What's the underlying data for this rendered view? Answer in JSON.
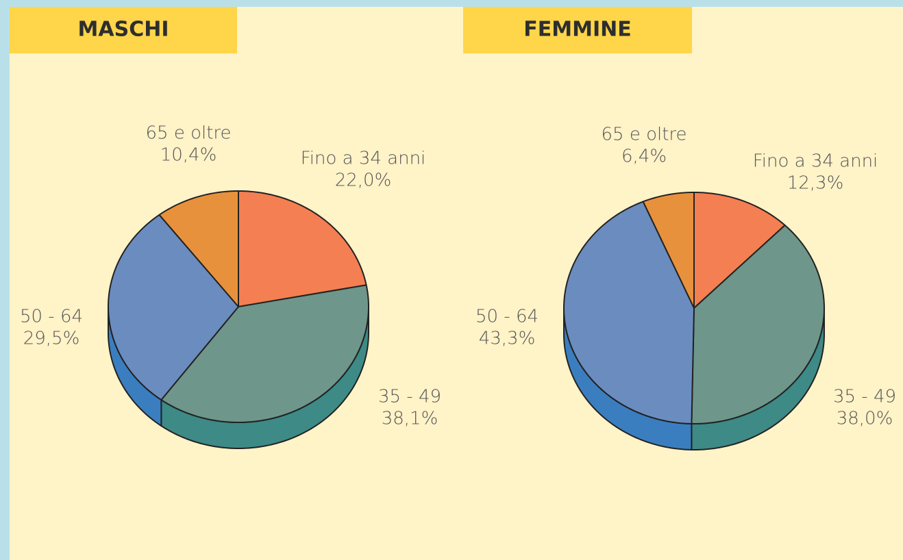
{
  "chart_data": [
    {
      "type": "pie",
      "title": "MASCHI",
      "categories": [
        "Fino a 34 anni",
        "35 - 49",
        "50 - 64",
        "65 e oltre"
      ],
      "values": [
        22.0,
        38.1,
        29.5,
        10.4
      ],
      "value_labels": [
        "22,0%",
        "38,1%",
        "29,5%",
        "10,4%"
      ],
      "colors": [
        "#f47f52",
        "#6e968a",
        "#6b8cbf",
        "#e8913c"
      ],
      "side_colors": [
        "#d0603a",
        "#3d8a86",
        "#3a7ec0",
        "#c87428"
      ]
    },
    {
      "type": "pie",
      "title": "FEMMINE",
      "categories": [
        "Fino a 34 anni",
        "35 - 49",
        "50 - 64",
        "65 e oltre"
      ],
      "values": [
        12.3,
        38.0,
        43.3,
        6.4
      ],
      "value_labels": [
        "12,3%",
        "38,0%",
        "43,3%",
        "6,4%"
      ],
      "colors": [
        "#f47f52",
        "#6e968a",
        "#6b8cbf",
        "#e8913c"
      ],
      "side_colors": [
        "#d0603a",
        "#3d8a86",
        "#3a7ec0",
        "#c87428"
      ]
    }
  ]
}
